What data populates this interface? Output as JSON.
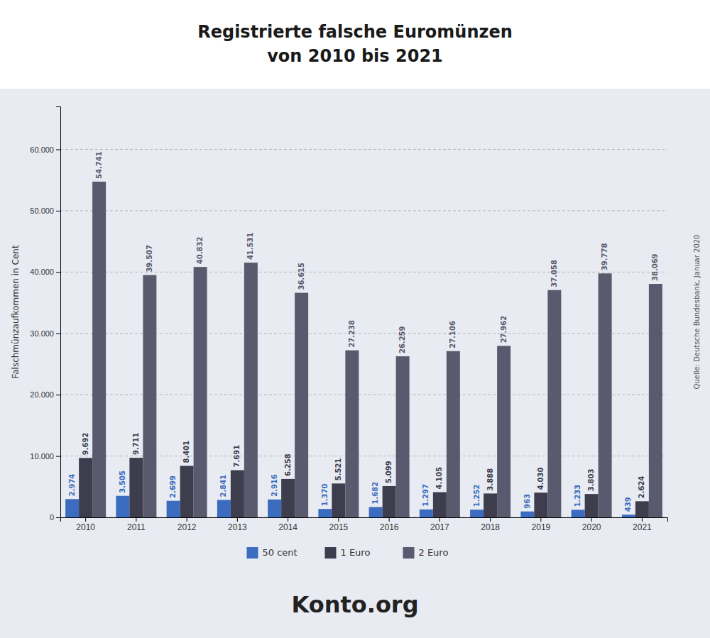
{
  "chart_data": {
    "type": "bar",
    "title": "Registrierte falsche Euromünzen\nvon 2010 bis 2021",
    "y_label": "Falschmünzaufkommen in Cent",
    "annotations": [
      "Quelle: Deutsche Bundesbank, Januar 2020",
      "Konto.org"
    ],
    "categories": [
      "2010",
      "2011",
      "2012",
      "2013",
      "2014",
      "2015",
      "2016",
      "2017",
      "2018",
      "2019",
      "2020",
      "2021"
    ],
    "series": [
      {
        "name": "50 cent",
        "color": "#3b6cbf",
        "values": [
          2974,
          3505,
          2699,
          2841,
          2916,
          1370,
          1682,
          1297,
          1252,
          963,
          1233,
          439
        ],
        "value_labels": [
          "2.974",
          "3.505",
          "2.699",
          "2.841",
          "2.916",
          "1.370",
          "1.682",
          "1.297",
          "1.252",
          "963",
          "1.233",
          "439"
        ]
      },
      {
        "name": "1 Euro",
        "color": "#3d3d4d",
        "values": [
          9692,
          9711,
          8401,
          7691,
          6258,
          5521,
          5099,
          4105,
          3888,
          4030,
          3803,
          2624
        ],
        "value_labels": [
          "9.692",
          "9.711",
          "8.401",
          "7.691",
          "6.258",
          "5.521",
          "5.099",
          "4.105",
          "3.888",
          "4.030",
          "3.803",
          "2.624"
        ]
      },
      {
        "name": "2 Euro",
        "color": "#5a5a6e",
        "values": [
          54741,
          39507,
          40832,
          41531,
          36615,
          27238,
          26259,
          27106,
          27962,
          37058,
          39778,
          38069
        ],
        "value_labels": [
          "54.741",
          "39.507",
          "40.832",
          "41.531",
          "36.615",
          "27.238",
          "26.259",
          "27.106",
          "27.962",
          "37.058",
          "39.778",
          "38.069"
        ]
      }
    ],
    "ylim": [
      0,
      67000
    ],
    "yticks": [
      0,
      {
        "value": 10000,
        "label": "10.000"
      },
      {
        "value": 20000,
        "label": "20.000"
      },
      {
        "value": 30000,
        "label": "30.000"
      },
      {
        "value": 40000,
        "label": "40.000"
      },
      {
        "value": 50000,
        "label": "50.000"
      },
      {
        "value": 60000,
        "label": "60.000"
      }
    ],
    "grid": true,
    "legend": "bottom",
    "data_labels": true
  }
}
